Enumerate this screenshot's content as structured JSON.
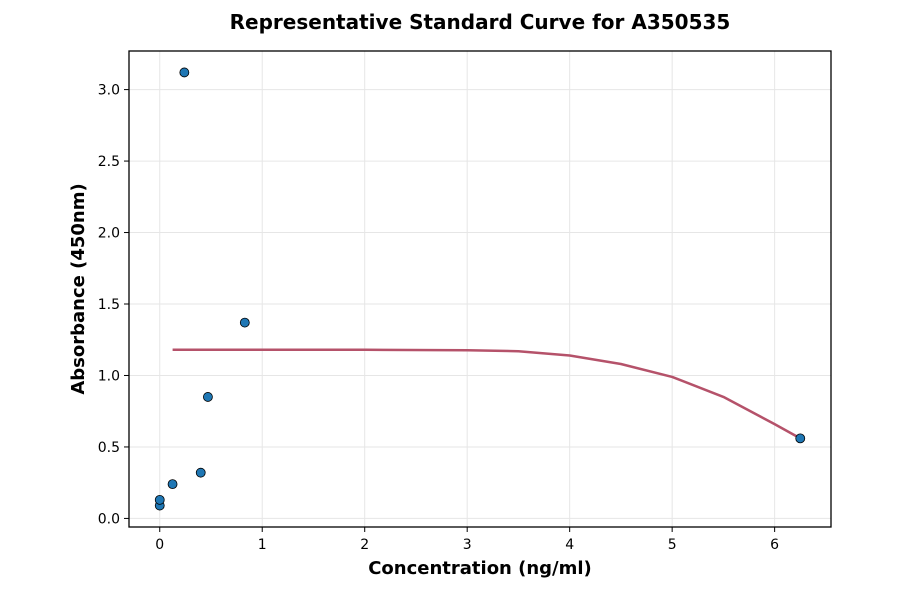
{
  "chart_data": {
    "type": "scatter",
    "title": "Representative Standard Curve for A350535",
    "xlabel": "Concentration (ng/ml)",
    "ylabel": "Absorbance (450nm)",
    "xlim": [
      -0.3,
      6.55
    ],
    "ylim": [
      -0.06,
      3.27
    ],
    "xticks": [
      0,
      1,
      2,
      3,
      4,
      5,
      6
    ],
    "yticks": [
      0.0,
      0.5,
      1.0,
      1.5,
      2.0,
      2.5,
      3.0
    ],
    "ytick_labels": [
      "0.0",
      "0.5",
      "1.0",
      "1.5",
      "2.0",
      "2.5",
      "3.0"
    ],
    "grid": true,
    "legend": "none",
    "points": {
      "color": "#1f77b4",
      "x": [
        0.0,
        0.0,
        0.125,
        0.24,
        0.4,
        0.47,
        0.83,
        6.25
      ],
      "y": [
        0.09,
        0.13,
        0.24,
        3.12,
        0.32,
        0.85,
        1.37,
        0.56
      ]
    },
    "fit_curve": {
      "color": "#b5526a",
      "x": [
        0.125,
        1.0,
        2.0,
        3.0,
        3.5,
        4.0,
        4.5,
        5.0,
        5.5,
        6.0,
        6.25
      ],
      "y": [
        1.18,
        1.18,
        1.18,
        1.177,
        1.17,
        1.14,
        1.08,
        0.99,
        0.85,
        0.66,
        0.56
      ]
    }
  }
}
